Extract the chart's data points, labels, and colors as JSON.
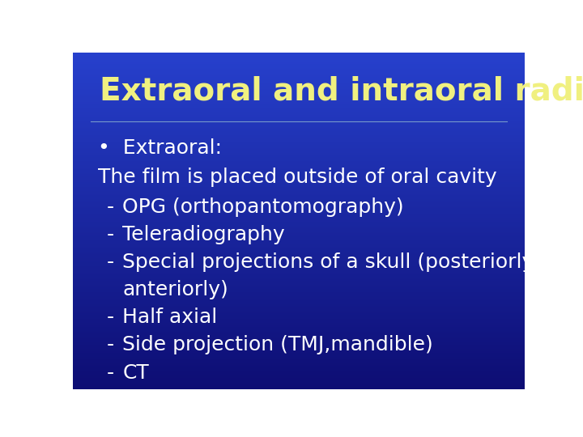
{
  "title": "Extraoral and intraoral radiography",
  "title_color": "#f0f080",
  "title_fontsize": 28,
  "bullet_header": "•  Extraoral:",
  "bullet_header_color": "#ffffff",
  "subtext": "The film is placed outside of oral cavity",
  "subtext_color": "#ffffff",
  "items": [
    "OPG (orthopantomography)",
    "Teleradiography",
    "Special projections of a skull (posteriorly –",
    "anteriorly)",
    "Half axial",
    "Side projection (TMJ,mandible)",
    "CT"
  ],
  "item_has_dash": [
    true,
    true,
    true,
    false,
    true,
    true,
    true
  ],
  "items_color": "#ffffff",
  "bullet_fontsize": 18,
  "items_fontsize": 18
}
